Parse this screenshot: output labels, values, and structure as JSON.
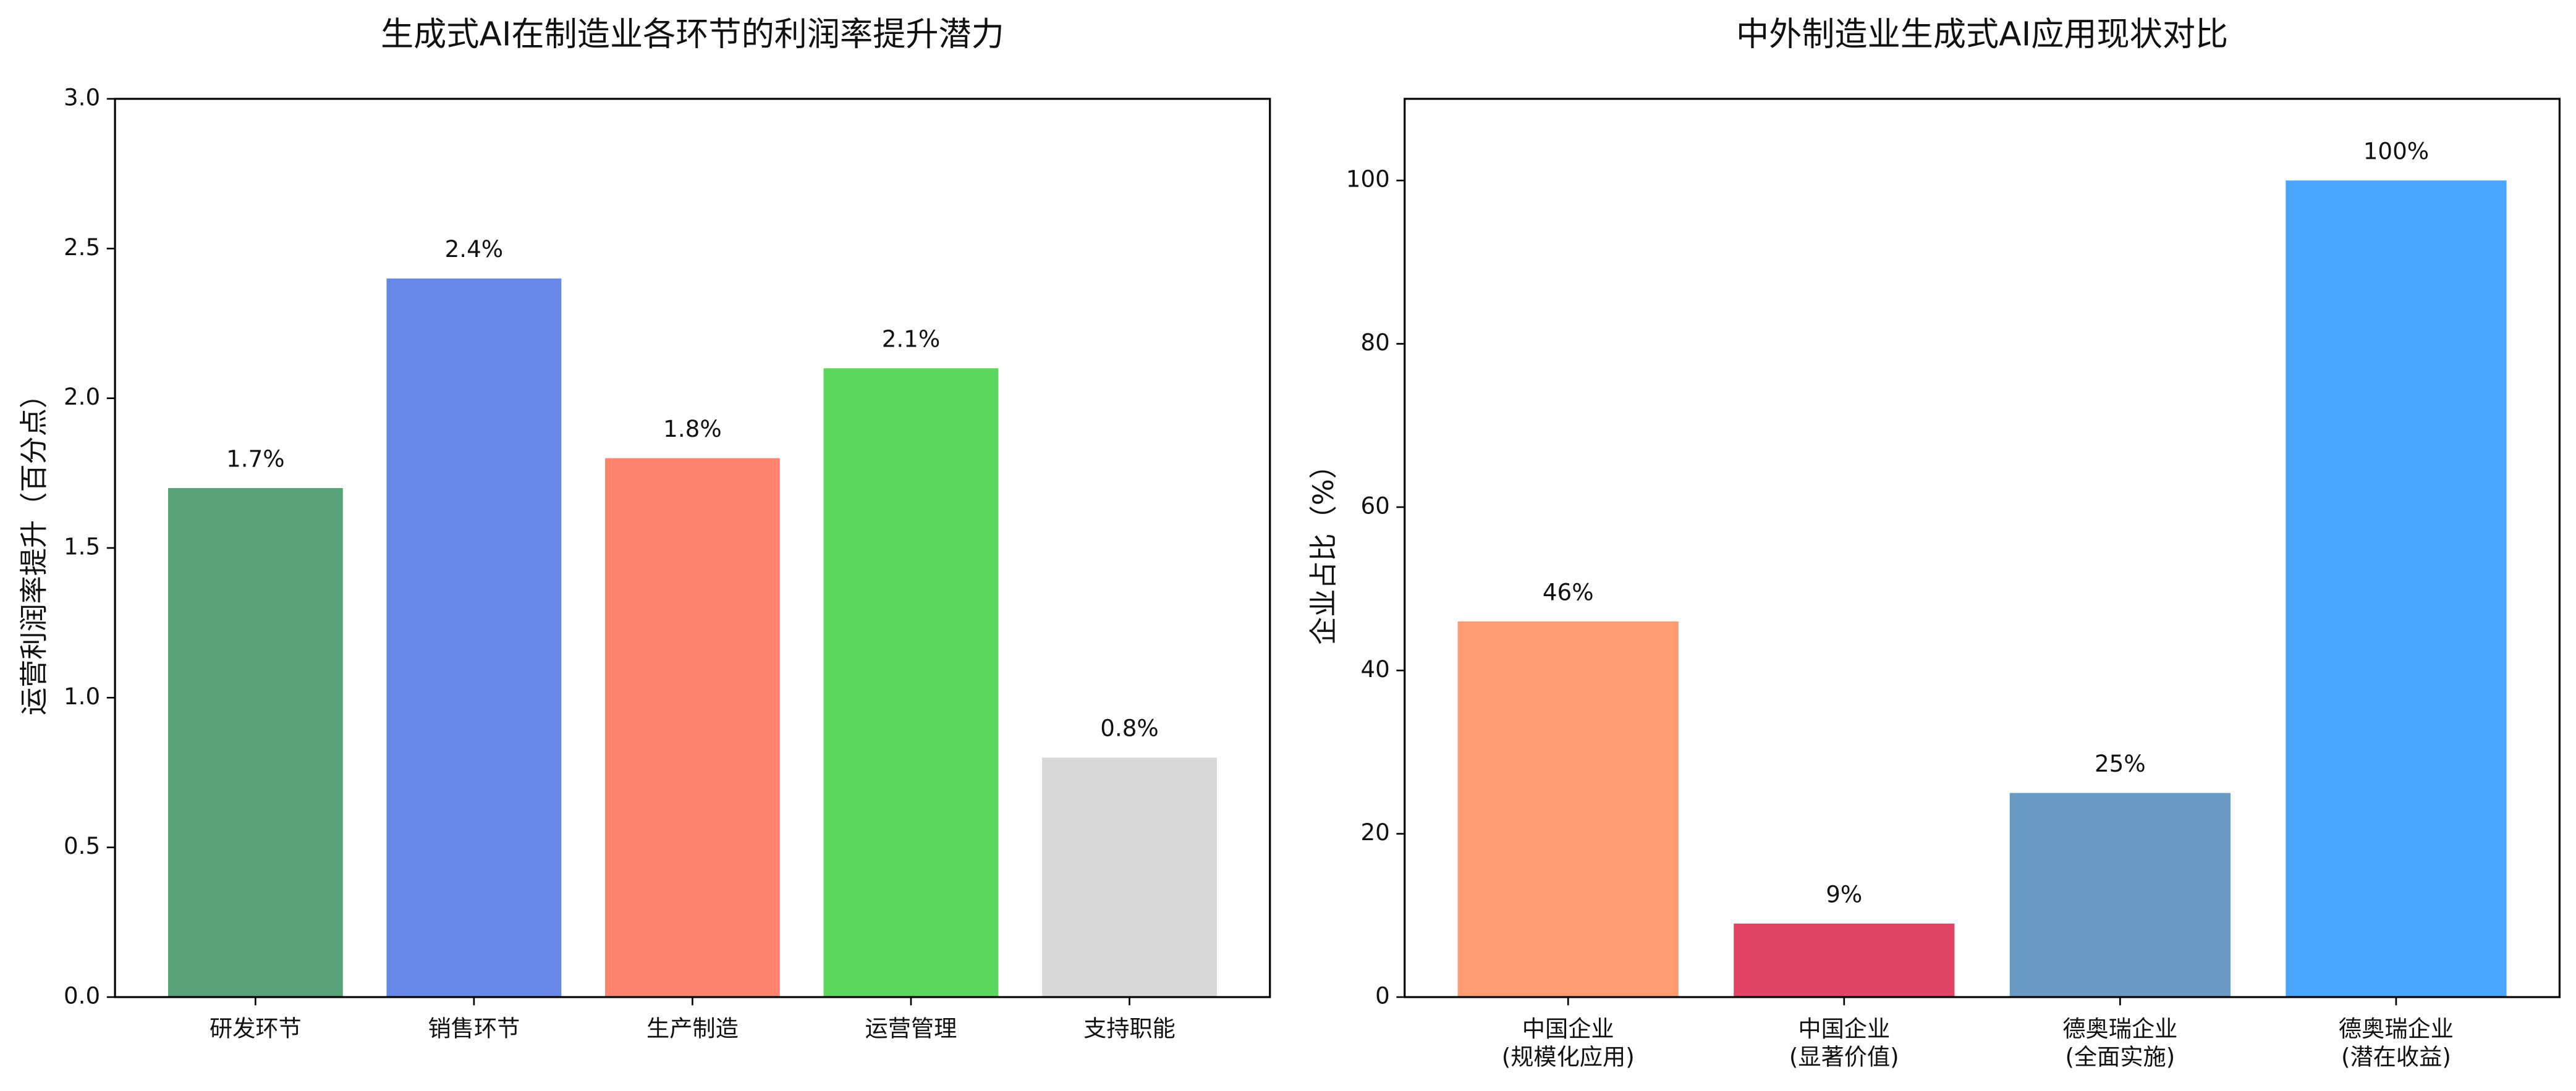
{
  "chart_data": [
    {
      "type": "bar",
      "title": "生成式AI在制造业各环节的利润率提升潜力",
      "y_label": "运营利润率提升（百分点）",
      "categories": [
        "研发环节",
        "销售环节",
        "生产制造",
        "运营管理",
        "支持职能"
      ],
      "values": [
        1.7,
        2.4,
        1.8,
        2.1,
        0.8
      ],
      "value_labels": [
        "1.7%",
        "2.4%",
        "1.8%",
        "2.1%",
        "0.8%"
      ],
      "colors": [
        "#58a27a",
        "#6788e6",
        "#ff8570",
        "#5cd65c",
        "#d9d9d9"
      ],
      "ylim": [
        0,
        3
      ],
      "yticks": [
        {
          "value": 0,
          "label": "0.0"
        },
        0.5,
        {
          "value": 1,
          "label": "1.0"
        },
        1.5,
        {
          "value": 2,
          "label": "2.0"
        },
        2.5,
        {
          "value": 3,
          "label": "3.0"
        }
      ],
      "grid": false
    },
    {
      "type": "bar",
      "title": "中外制造业生成式AI应用现状对比",
      "y_label": "企业占比（%）",
      "categories": [
        "中国企业\n(规模化应用)",
        "中国企业\n(显著价值)",
        "德奥瑞企业\n(全面实施)",
        "德奥瑞企业\n(潜在收益)"
      ],
      "values": [
        46,
        9,
        25,
        100
      ],
      "value_labels": [
        "46%",
        "9%",
        "25%",
        "100%"
      ],
      "colors": [
        "#ff9a72",
        "#e24466",
        "#6b9bc4",
        "#4aa6ff"
      ],
      "ylim": [
        0,
        110
      ],
      "yticks": [
        0,
        20,
        40,
        60,
        80,
        100
      ],
      "grid": false
    }
  ]
}
